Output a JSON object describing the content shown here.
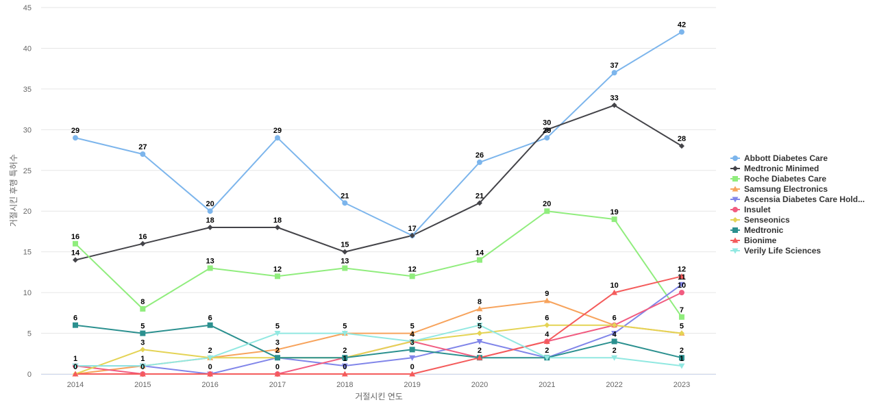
{
  "chart_data": {
    "type": "line",
    "xlabel": "거절시킨 연도",
    "ylabel": "거절시킨 후행 특허수",
    "ylim": [
      0,
      45
    ],
    "y_ticks": [
      0,
      5,
      10,
      15,
      20,
      25,
      30,
      35,
      40,
      45
    ],
    "grid": "horizontal",
    "legend_position": "right",
    "categories": [
      "2014",
      "2015",
      "2016",
      "2017",
      "2018",
      "2019",
      "2020",
      "2021",
      "2022",
      "2023"
    ],
    "series": [
      {
        "name": "Abbott Diabetes Care",
        "color": "#7cb5ec",
        "marker": "circle",
        "values": [
          29,
          27,
          20,
          29,
          21,
          17,
          26,
          29,
          37,
          42
        ]
      },
      {
        "name": "Medtronic Minimed",
        "color": "#434348",
        "marker": "diamond",
        "values": [
          14,
          16,
          18,
          18,
          15,
          17,
          21,
          30,
          33,
          28
        ]
      },
      {
        "name": "Roche Diabetes Care",
        "color": "#90ed7d",
        "marker": "square",
        "values": [
          16,
          8,
          13,
          12,
          13,
          12,
          14,
          20,
          19,
          7
        ]
      },
      {
        "name": "Samsung Electronics",
        "color": "#f7a35c",
        "marker": "triangle",
        "values": [
          0,
          1,
          2,
          3,
          5,
          5,
          8,
          9,
          6,
          5
        ]
      },
      {
        "name": "Ascensia Diabetes Care Hold...",
        "color": "#8085e9",
        "marker": "triangle-down",
        "values": [
          1,
          1,
          0,
          2,
          1,
          2,
          4,
          2,
          5,
          11
        ]
      },
      {
        "name": "Insulet",
        "color": "#f15c80",
        "marker": "circle",
        "values": [
          1,
          0,
          0,
          0,
          2,
          4,
          2,
          4,
          6,
          10
        ]
      },
      {
        "name": "Senseonics",
        "color": "#e4d354",
        "marker": "diamond",
        "values": [
          0,
          3,
          2,
          2,
          2,
          4,
          5,
          6,
          6,
          5
        ]
      },
      {
        "name": "Medtronic",
        "color": "#2b908f",
        "marker": "square",
        "values": [
          6,
          5,
          6,
          2,
          2,
          3,
          2,
          2,
          4,
          2
        ]
      },
      {
        "name": "Bionime",
        "color": "#f45b5b",
        "marker": "triangle",
        "values": [
          0,
          0,
          0,
          0,
          0,
          0,
          2,
          4,
          10,
          12
        ]
      },
      {
        "name": "Verily Life Sciences",
        "color": "#91e8e1",
        "marker": "triangle-down",
        "values": [
          1,
          1,
          2,
          5,
          5,
          4,
          6,
          2,
          2,
          1
        ]
      }
    ],
    "data_labels": [
      {
        "category": "2014",
        "series": [
          "Abbott Diabetes Care",
          "Roche Diabetes Care",
          "Medtronic Minimed",
          "Medtronic",
          "Ascensia Diabetes Care Hold...",
          "Samsung Electronics"
        ]
      },
      {
        "category": "2015",
        "series": [
          "Abbott Diabetes Care",
          "Roche Diabetes Care",
          "Medtronic Minimed",
          "Medtronic",
          "Senseonics",
          "Ascensia Diabetes Care Hold...",
          "Insulet"
        ]
      },
      {
        "category": "2016",
        "series": [
          "Abbott Diabetes Care",
          "Medtronic Minimed",
          "Roche Diabetes Care",
          "Medtronic",
          "Verily Life Sciences",
          "Ascensia Diabetes Care Hold..."
        ]
      },
      {
        "category": "2017",
        "series": [
          "Abbott Diabetes Care",
          "Medtronic Minimed",
          "Roche Diabetes Care",
          "Verily Life Sciences",
          "Samsung Electronics",
          "Medtronic",
          "Insulet"
        ]
      },
      {
        "category": "2018",
        "series": [
          "Abbott Diabetes Care",
          "Medtronic Minimed",
          "Roche Diabetes Care",
          "Verily Life Sciences",
          "Medtronic",
          "Ascensia Diabetes Care Hold...",
          "Bionime"
        ]
      },
      {
        "category": "2019",
        "series": [
          "Abbott Diabetes Care",
          "Roche Diabetes Care",
          "Samsung Electronics",
          "Verily Life Sciences",
          "Medtronic",
          "Bionime"
        ]
      },
      {
        "category": "2020",
        "series": [
          "Abbott Diabetes Care",
          "Medtronic Minimed",
          "Roche Diabetes Care",
          "Samsung Electronics",
          "Verily Life Sciences",
          "Senseonics",
          "Medtronic"
        ]
      },
      {
        "category": "2021",
        "series": [
          "Medtronic Minimed",
          "Abbott Diabetes Care",
          "Roche Diabetes Care",
          "Samsung Electronics",
          "Senseonics",
          "Insulet",
          "Medtronic"
        ]
      },
      {
        "category": "2022",
        "series": [
          "Abbott Diabetes Care",
          "Medtronic Minimed",
          "Roche Diabetes Care",
          "Bionime",
          "Insulet",
          "Medtronic",
          "Verily Life Sciences"
        ]
      },
      {
        "category": "2023",
        "series": [
          "Abbott Diabetes Care",
          "Medtronic Minimed",
          "Bionime",
          "Ascensia Diabetes Care Hold...",
          "Insulet",
          "Roche Diabetes Care",
          "Samsung Electronics",
          "Medtronic",
          "Verily Life Sciences"
        ]
      }
    ]
  }
}
